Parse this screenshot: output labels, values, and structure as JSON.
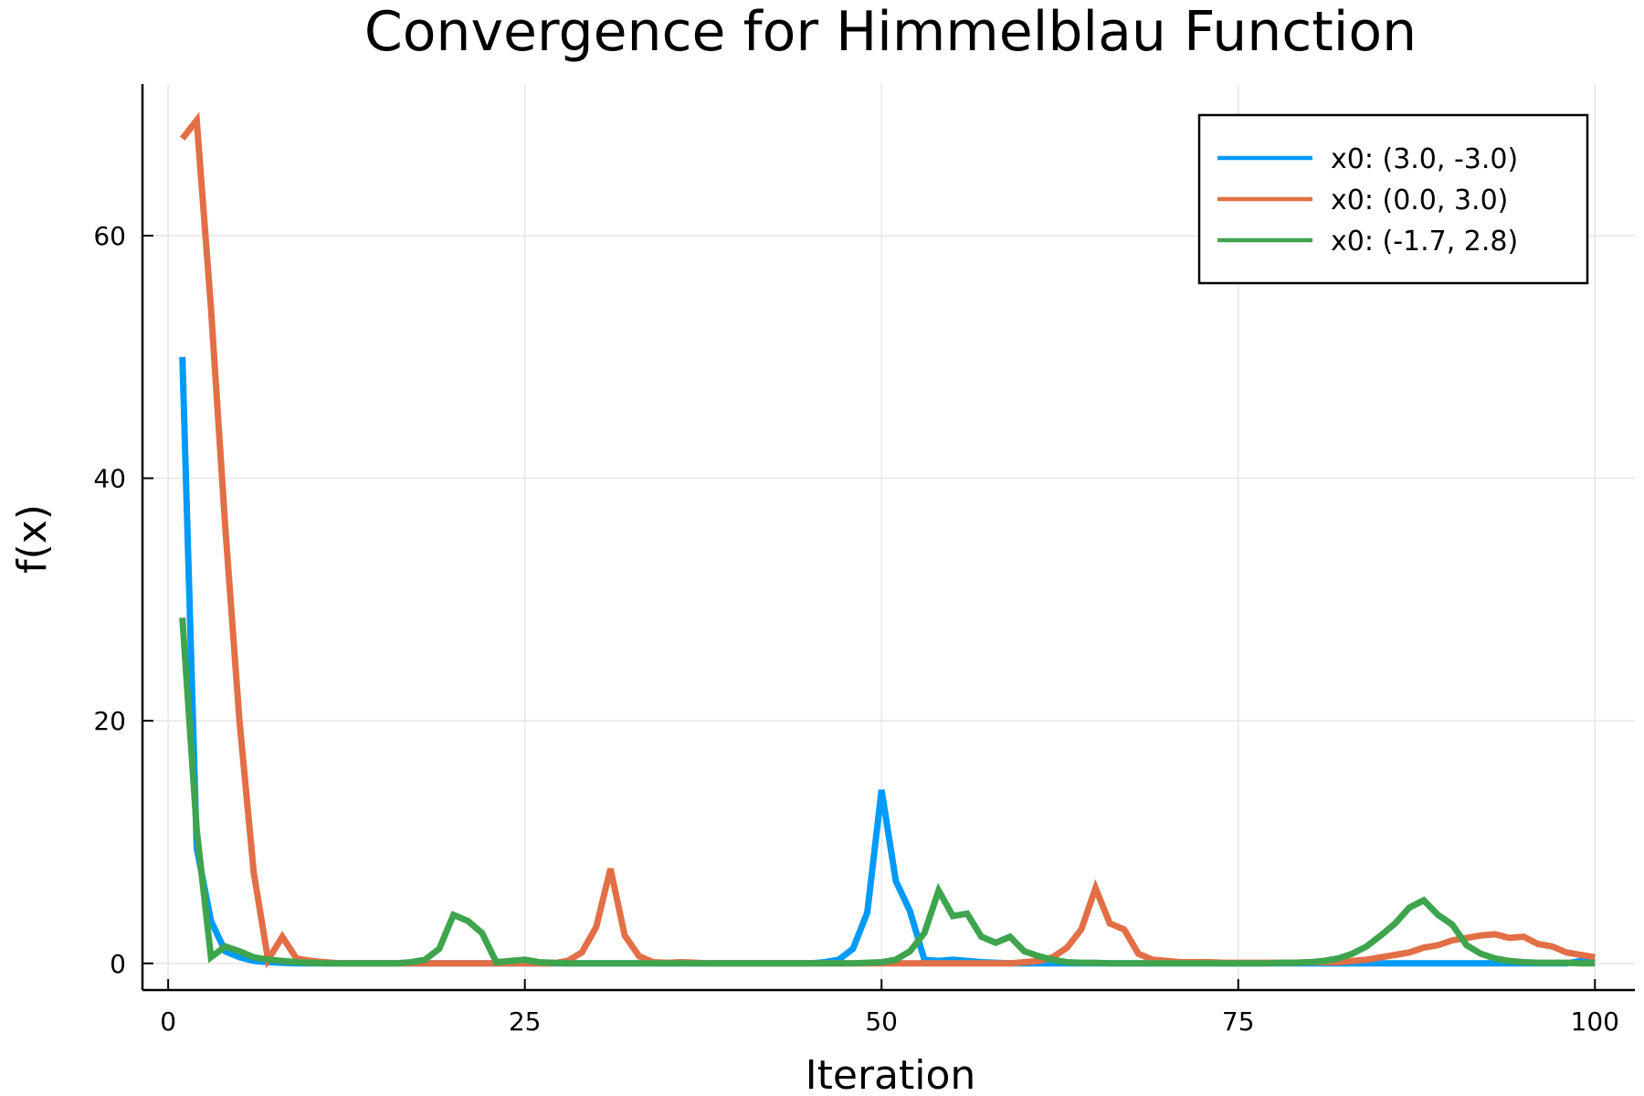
{
  "chart_data": {
    "type": "line",
    "title": "Convergence for Himmelblau Function",
    "xlabel": "Iteration",
    "ylabel": "f(x)",
    "xlim": [
      -1.8,
      102.8
    ],
    "ylim": [
      -2.2,
      72.5
    ],
    "xticks": [
      0,
      25,
      50,
      75,
      100
    ],
    "yticks": [
      0,
      20,
      40,
      60
    ],
    "grid": true,
    "legend_position": "top-right",
    "x": [
      1,
      2,
      3,
      4,
      5,
      6,
      7,
      8,
      9,
      10,
      11,
      12,
      13,
      14,
      15,
      16,
      17,
      18,
      19,
      20,
      21,
      22,
      23,
      24,
      25,
      26,
      27,
      28,
      29,
      30,
      31,
      32,
      33,
      34,
      35,
      36,
      37,
      38,
      39,
      40,
      41,
      42,
      43,
      44,
      45,
      46,
      47,
      48,
      49,
      50,
      51,
      52,
      53,
      54,
      55,
      56,
      57,
      58,
      59,
      60,
      61,
      62,
      63,
      64,
      65,
      66,
      67,
      68,
      69,
      70,
      71,
      72,
      73,
      74,
      75,
      76,
      77,
      78,
      79,
      80,
      81,
      82,
      83,
      84,
      85,
      86,
      87,
      88,
      89,
      90,
      91,
      92,
      93,
      94,
      95,
      96,
      97,
      98,
      99,
      100
    ],
    "series": [
      {
        "name": "x0: (3.0, -3.0)",
        "color": "#009af9",
        "values": [
          50,
          9.5,
          3.5,
          1,
          0.5,
          0.2,
          0.1,
          0.05,
          0,
          0,
          0,
          0,
          0,
          0,
          0,
          0,
          0,
          0,
          0,
          0,
          0,
          0,
          0,
          0,
          0,
          0,
          0,
          0,
          0,
          0,
          0,
          0,
          0,
          0,
          0,
          0,
          0,
          0,
          0,
          0,
          0,
          0,
          0,
          0,
          0,
          0.1,
          0.3,
          1.2,
          4.2,
          14.3,
          6.8,
          4.3,
          0.3,
          0.2,
          0.3,
          0.2,
          0.1,
          0.05,
          0,
          0,
          0,
          0,
          0,
          0,
          0,
          0,
          0,
          0,
          0,
          0,
          0,
          0,
          0,
          0,
          0,
          0,
          0,
          0,
          0,
          0,
          0,
          0,
          0,
          0,
          0,
          0,
          0,
          0,
          0,
          0,
          0,
          0,
          0,
          0,
          0,
          0,
          0,
          0,
          0.2,
          0.1
        ]
      },
      {
        "name": "x0: (0.0, 3.0)",
        "color": "#e26f46",
        "values": [
          68,
          69.5,
          54,
          36,
          20,
          7.5,
          0.3,
          2.2,
          0.4,
          0.2,
          0.1,
          0,
          0,
          0,
          0,
          0,
          0,
          0,
          0,
          0,
          0,
          0,
          0,
          0,
          0,
          0,
          0,
          0.2,
          0.9,
          3,
          7.8,
          2.3,
          0.6,
          0.1,
          0.05,
          0.1,
          0.05,
          0,
          0,
          0,
          0,
          0,
          0,
          0,
          0,
          0,
          0,
          0,
          0,
          0,
          0,
          0,
          0,
          0,
          0,
          0,
          0,
          0,
          0,
          0.1,
          0.2,
          0.5,
          1.3,
          2.8,
          6.2,
          3.3,
          2.8,
          0.8,
          0.3,
          0.2,
          0.1,
          0.1,
          0.1,
          0.05,
          0.05,
          0.05,
          0.05,
          0.05,
          0.05,
          0.1,
          0.1,
          0.1,
          0.2,
          0.3,
          0.5,
          0.7,
          0.9,
          1.3,
          1.5,
          1.9,
          2.1,
          2.3,
          2.4,
          2.1,
          2.2,
          1.6,
          1.4,
          0.9,
          0.7,
          0.5
        ]
      },
      {
        "name": "x0: (-1.7, 2.8)",
        "color": "#3ea44e",
        "values": [
          28.5,
          11,
          0.5,
          1.4,
          1,
          0.5,
          0.3,
          0.2,
          0.1,
          0.05,
          0,
          0,
          0,
          0,
          0,
          0,
          0.1,
          0.3,
          1.2,
          4,
          3.5,
          2.5,
          0.1,
          0.2,
          0.3,
          0.1,
          0.05,
          0,
          0,
          0,
          0,
          0,
          0,
          0,
          0,
          0,
          0,
          0,
          0,
          0,
          0,
          0,
          0,
          0,
          0,
          0,
          0,
          0,
          0.05,
          0.1,
          0.3,
          1,
          2.5,
          6,
          3.9,
          4.1,
          2.2,
          1.7,
          2.2,
          1,
          0.6,
          0.3,
          0.1,
          0.05,
          0.05,
          0,
          0,
          0,
          0,
          0,
          0,
          0,
          0,
          0,
          0,
          0,
          0,
          0.05,
          0.05,
          0.1,
          0.2,
          0.4,
          0.8,
          1.4,
          2.3,
          3.3,
          4.6,
          5.2,
          4,
          3.2,
          1.5,
          0.8,
          0.4,
          0.2,
          0.1,
          0.05,
          0.05,
          0.05,
          0,
          0
        ]
      }
    ]
  }
}
